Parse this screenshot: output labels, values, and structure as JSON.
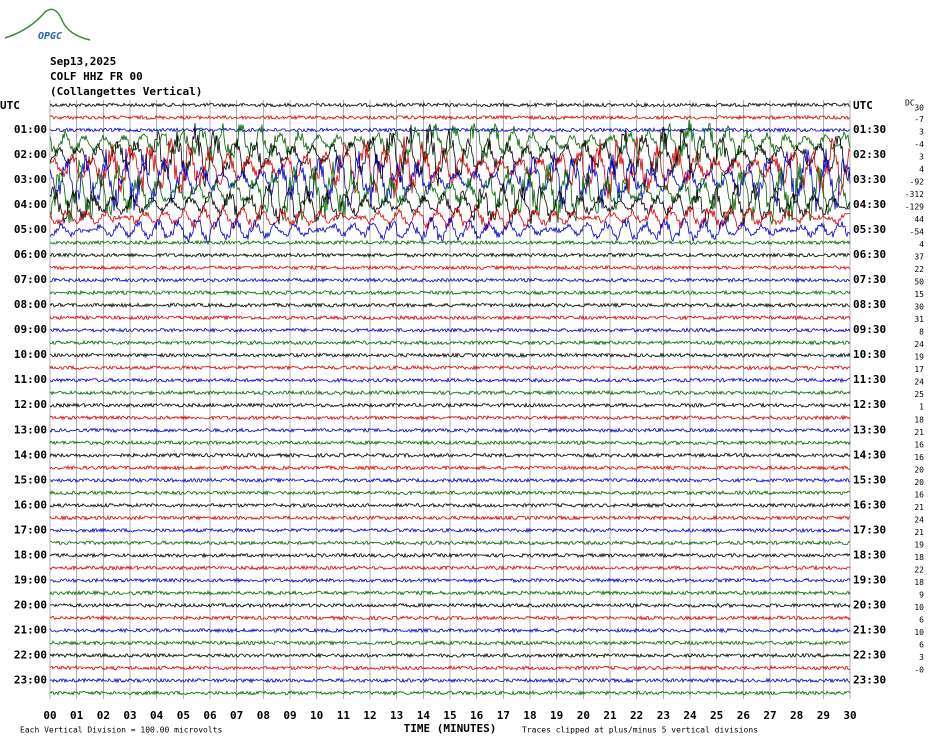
{
  "logo": "OPGC",
  "header": {
    "date": "Sep13,2025",
    "station": "COLF HHZ FR 00",
    "site": "(Collangettes Vertical)"
  },
  "left_labels": [
    "UTC",
    "01:00",
    "02:00",
    "03:00",
    "04:00",
    "05:00",
    "06:00",
    "07:00",
    "08:00",
    "09:00",
    "10:00",
    "11:00",
    "12:00",
    "13:00",
    "14:00",
    "15:00",
    "16:00",
    "17:00",
    "18:00",
    "19:00",
    "20:00",
    "21:00",
    "22:00",
    "23:00"
  ],
  "right_labels": [
    "UTC",
    "01:30",
    "02:30",
    "03:30",
    "04:30",
    "05:30",
    "06:30",
    "07:30",
    "08:30",
    "09:30",
    "10:30",
    "11:30",
    "12:30",
    "13:30",
    "14:30",
    "15:30",
    "16:30",
    "17:30",
    "18:30",
    "19:30",
    "20:30",
    "21:30",
    "22:30",
    "23:30"
  ],
  "dc_header": "DC",
  "dc_values": [
    "30",
    "-7",
    "3",
    "-4",
    "3",
    "4",
    "-92",
    "-312",
    "-129",
    "44",
    "-54",
    "4",
    "37",
    "22",
    "50",
    "15",
    "30",
    "31",
    "8",
    "24",
    "19",
    "17",
    "24",
    "25",
    "1",
    "18",
    "21",
    "16",
    "16",
    "20",
    "20",
    "16",
    "21",
    "24",
    "21",
    "19",
    "18",
    "22",
    "18",
    "9",
    "10",
    "6",
    "10",
    "6",
    "3",
    "-0"
  ],
  "x_ticks": [
    "00",
    "01",
    "02",
    "03",
    "04",
    "05",
    "06",
    "07",
    "08",
    "09",
    "10",
    "11",
    "12",
    "13",
    "14",
    "15",
    "16",
    "17",
    "18",
    "19",
    "20",
    "21",
    "22",
    "23",
    "24",
    "25",
    "26",
    "27",
    "28",
    "29",
    "30"
  ],
  "footer": {
    "scale": "Each Vertical Division =  100.00 microvolts",
    "x_title": "TIME (MINUTES)",
    "clip": "Traces clipped at plus/minus 5 vertical divisions"
  }
}
